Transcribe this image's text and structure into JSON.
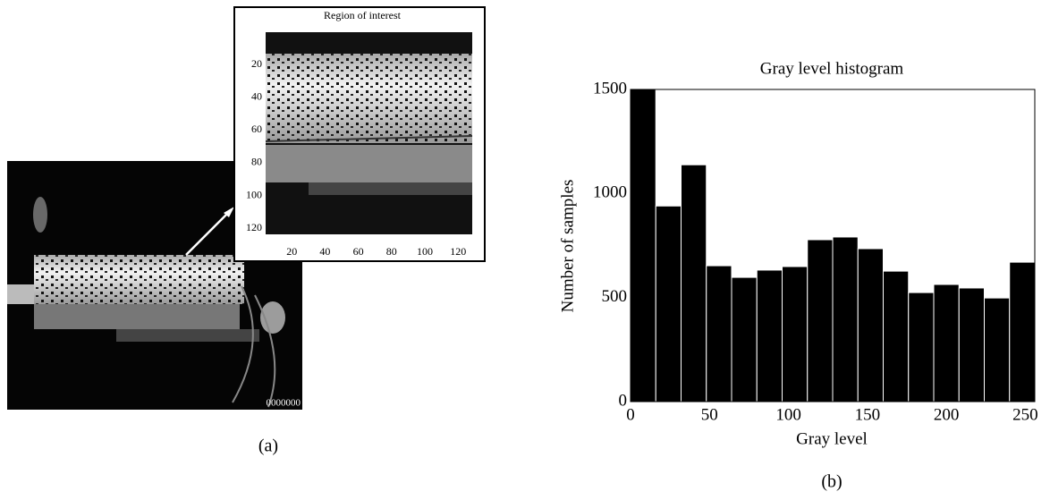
{
  "panel_a": {
    "label": "(a)",
    "timestamp": "0000000",
    "inset": {
      "title": "Region of interest",
      "xticks": [
        20,
        40,
        60,
        80,
        100,
        120
      ],
      "yticks": [
        20,
        40,
        60,
        80,
        100,
        120
      ]
    }
  },
  "panel_b": {
    "label": "(b)"
  },
  "chart_data": {
    "type": "histogram",
    "title": "Gray level histogram",
    "x_label": "Gray level",
    "y_label": "Number of samples",
    "bins": [
      0,
      16,
      32,
      48,
      64,
      80,
      96,
      112,
      128,
      144,
      160,
      176,
      192,
      208,
      224,
      240,
      256
    ],
    "values": [
      1500,
      940,
      1138,
      653,
      597,
      632,
      649,
      778,
      791,
      735,
      627,
      524,
      563,
      546,
      498,
      670
    ],
    "color": "#000000",
    "xlim": [
      0,
      256
    ],
    "ylim": [
      0,
      1500
    ],
    "xticks": [
      0,
      50,
      100,
      150,
      200,
      250
    ],
    "yticks": [
      0,
      500,
      1000,
      1500
    ],
    "grid": false
  }
}
